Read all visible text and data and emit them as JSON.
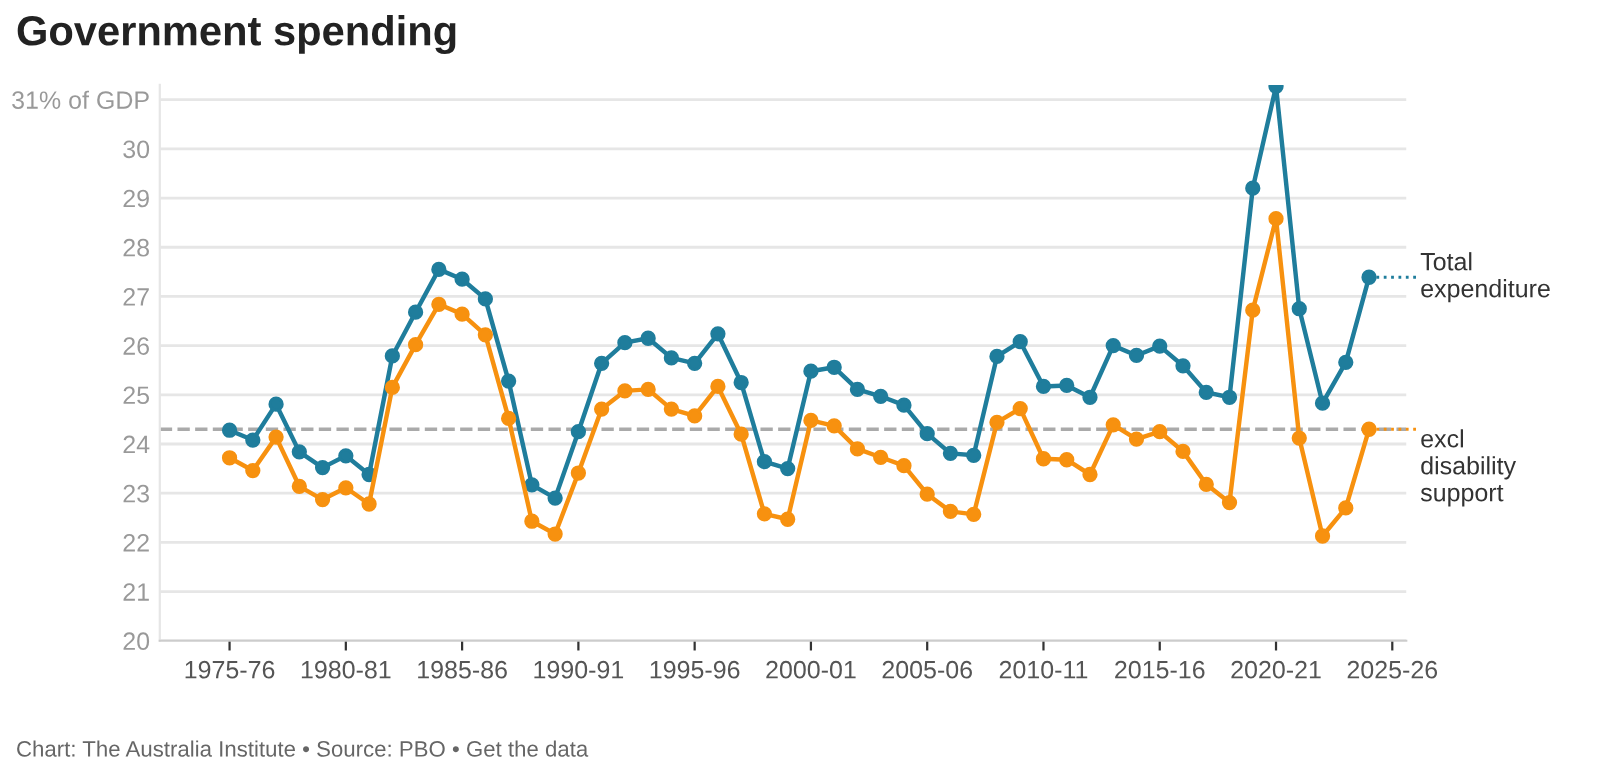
{
  "chart_data": {
    "type": "line",
    "title": "Government spending",
    "categories": [
      "1975-76",
      null,
      null,
      null,
      null,
      "1980-81",
      null,
      null,
      null,
      null,
      "1985-86",
      null,
      null,
      null,
      null,
      "1990-91",
      null,
      null,
      null,
      null,
      "1995-96",
      null,
      null,
      null,
      null,
      "2000-01",
      null,
      null,
      null,
      null,
      "2005-06",
      null,
      null,
      null,
      null,
      "2010-11",
      null,
      null,
      null,
      null,
      "2015-16",
      null,
      null,
      null,
      null,
      "2020-21",
      null,
      null,
      null,
      null,
      "2025-26"
    ],
    "series": [
      {
        "name": "Total expenditure",
        "color": "#1f7d9c",
        "values": [
          24.28,
          24.08,
          24.81,
          23.84,
          23.52,
          23.76,
          23.38,
          25.79,
          26.68,
          27.55,
          27.35,
          26.95,
          25.28,
          23.17,
          22.9,
          24.25,
          25.64,
          26.06,
          26.15,
          25.75,
          25.64,
          26.24,
          25.25,
          23.64,
          23.5,
          25.48,
          25.56,
          25.11,
          24.97,
          24.79,
          24.21,
          23.81,
          23.77,
          25.78,
          26.08,
          25.17,
          25.19,
          24.95,
          26.0,
          25.8,
          25.99,
          25.59,
          25.05,
          24.95,
          29.2,
          31.27,
          26.75,
          24.83,
          25.66,
          27.39,
          null
        ]
      },
      {
        "name": "excl disability support",
        "color": "#f7910f",
        "values": [
          23.72,
          23.46,
          24.14,
          23.14,
          22.87,
          23.11,
          22.78,
          25.15,
          26.02,
          26.84,
          26.64,
          26.22,
          24.52,
          22.43,
          22.17,
          23.41,
          24.71,
          25.08,
          25.11,
          24.71,
          24.57,
          25.17,
          24.2,
          22.58,
          22.47,
          24.48,
          24.37,
          23.9,
          23.73,
          23.56,
          22.98,
          22.63,
          22.57,
          24.44,
          24.72,
          23.7,
          23.68,
          23.38,
          24.39,
          24.1,
          24.25,
          23.85,
          23.18,
          22.81,
          26.72,
          28.58,
          24.12,
          22.13,
          22.7,
          24.3,
          null
        ]
      }
    ],
    "ylim": [
      20,
      31.3
    ],
    "yticks": [
      20,
      21,
      22,
      23,
      24,
      25,
      26,
      27,
      28,
      29,
      30,
      {
        "value": 31,
        "label": "31% of GDP"
      }
    ],
    "ref_lines": [
      {
        "axis": "y",
        "value": 24.3,
        "color": "#aaaaaa",
        "line_style": "dashed"
      }
    ],
    "grid": "y",
    "legend": "right",
    "marker": "circle",
    "line_style": "solid",
    "annotations": [
      "Chart: The Australia Institute • Source: PBO • Get the data"
    ]
  }
}
